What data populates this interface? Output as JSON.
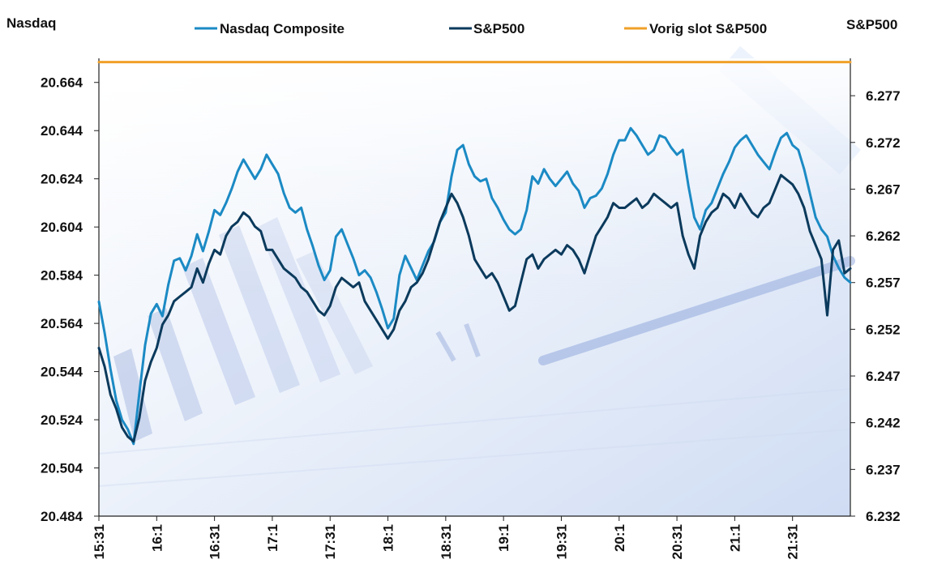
{
  "chart_data": {
    "type": "line",
    "title": "",
    "ylabel_left": "Nasdaq",
    "ylabel_right": "S&P500",
    "ylim_left": [
      20484,
      20674
    ],
    "ylim_right": [
      6232,
      6281
    ],
    "yticks_left": [
      "20.484",
      "20.504",
      "20.524",
      "20.544",
      "20.564",
      "20.584",
      "20.604",
      "20.624",
      "20.644",
      "20.664"
    ],
    "yticks_right": [
      "6.232",
      "6.237",
      "6.242",
      "6.247",
      "6.252",
      "6.257",
      "6.262",
      "6.267",
      "6.272",
      "6.277"
    ],
    "x_tick_labels": [
      "15:31",
      "16:1",
      "16:31",
      "17:1",
      "17:31",
      "18:1",
      "18:31",
      "19:1",
      "19:31",
      "20:1",
      "20:31",
      "21:1",
      "21:31"
    ],
    "x_minutes_range": [
      0,
      390
    ],
    "grid": false,
    "legend_position": "top",
    "series": [
      {
        "name": "Nasdaq Composite",
        "axis": "left",
        "color": "#1b8ac4",
        "points": [
          [
            0,
            20573
          ],
          [
            3,
            20560
          ],
          [
            6,
            20545
          ],
          [
            9,
            20532
          ],
          [
            12,
            20524
          ],
          [
            15,
            20520
          ],
          [
            18,
            20514
          ],
          [
            21,
            20535
          ],
          [
            24,
            20555
          ],
          [
            27,
            20568
          ],
          [
            30,
            20572
          ],
          [
            33,
            20567
          ],
          [
            36,
            20580
          ],
          [
            39,
            20590
          ],
          [
            42,
            20591
          ],
          [
            45,
            20586
          ],
          [
            48,
            20592
          ],
          [
            51,
            20601
          ],
          [
            54,
            20594
          ],
          [
            57,
            20602
          ],
          [
            60,
            20611
          ],
          [
            63,
            20609
          ],
          [
            66,
            20614
          ],
          [
            69,
            20620
          ],
          [
            72,
            20627
          ],
          [
            75,
            20632
          ],
          [
            78,
            20628
          ],
          [
            81,
            20624
          ],
          [
            84,
            20628
          ],
          [
            87,
            20634
          ],
          [
            90,
            20630
          ],
          [
            93,
            20626
          ],
          [
            96,
            20618
          ],
          [
            99,
            20612
          ],
          [
            102,
            20610
          ],
          [
            105,
            20612
          ],
          [
            108,
            20603
          ],
          [
            111,
            20596
          ],
          [
            114,
            20588
          ],
          [
            117,
            20582
          ],
          [
            120,
            20586
          ],
          [
            123,
            20600
          ],
          [
            126,
            20603
          ],
          [
            129,
            20597
          ],
          [
            132,
            20591
          ],
          [
            135,
            20584
          ],
          [
            138,
            20586
          ],
          [
            141,
            20583
          ],
          [
            144,
            20577
          ],
          [
            147,
            20570
          ],
          [
            150,
            20562
          ],
          [
            153,
            20566
          ],
          [
            156,
            20584
          ],
          [
            159,
            20592
          ],
          [
            162,
            20587
          ],
          [
            165,
            20582
          ],
          [
            168,
            20588
          ],
          [
            171,
            20594
          ],
          [
            174,
            20598
          ],
          [
            177,
            20606
          ],
          [
            180,
            20610
          ],
          [
            183,
            20625
          ],
          [
            186,
            20636
          ],
          [
            189,
            20638
          ],
          [
            192,
            20630
          ],
          [
            195,
            20625
          ],
          [
            198,
            20623
          ],
          [
            201,
            20624
          ],
          [
            204,
            20616
          ],
          [
            207,
            20612
          ],
          [
            210,
            20607
          ],
          [
            213,
            20603
          ],
          [
            216,
            20601
          ],
          [
            219,
            20603
          ],
          [
            222,
            20611
          ],
          [
            225,
            20625
          ],
          [
            228,
            20622
          ],
          [
            231,
            20628
          ],
          [
            234,
            20624
          ],
          [
            237,
            20621
          ],
          [
            240,
            20624
          ],
          [
            243,
            20627
          ],
          [
            246,
            20622
          ],
          [
            249,
            20619
          ],
          [
            252,
            20612
          ],
          [
            255,
            20616
          ],
          [
            258,
            20617
          ],
          [
            261,
            20620
          ],
          [
            264,
            20626
          ],
          [
            267,
            20634
          ],
          [
            270,
            20640
          ],
          [
            273,
            20640
          ],
          [
            276,
            20645
          ],
          [
            279,
            20642
          ],
          [
            282,
            20638
          ],
          [
            285,
            20634
          ],
          [
            288,
            20636
          ],
          [
            291,
            20642
          ],
          [
            294,
            20641
          ],
          [
            297,
            20637
          ],
          [
            300,
            20634
          ],
          [
            303,
            20636
          ],
          [
            306,
            20621
          ],
          [
            309,
            20608
          ],
          [
            312,
            20603
          ],
          [
            315,
            20611
          ],
          [
            318,
            20614
          ],
          [
            321,
            20620
          ],
          [
            324,
            20626
          ],
          [
            327,
            20631
          ],
          [
            330,
            20637
          ],
          [
            333,
            20640
          ],
          [
            336,
            20642
          ],
          [
            339,
            20638
          ],
          [
            342,
            20634
          ],
          [
            345,
            20631
          ],
          [
            348,
            20628
          ],
          [
            351,
            20635
          ],
          [
            354,
            20641
          ],
          [
            357,
            20643
          ],
          [
            360,
            20638
          ],
          [
            363,
            20636
          ],
          [
            366,
            20628
          ],
          [
            369,
            20618
          ],
          [
            372,
            20608
          ],
          [
            375,
            20603
          ],
          [
            378,
            20600
          ],
          [
            381,
            20592
          ],
          [
            384,
            20587
          ],
          [
            387,
            20583
          ],
          [
            390,
            20581
          ]
        ]
      },
      {
        "name": "S&P500",
        "axis": "right",
        "color": "#0b3a5c",
        "points": [
          [
            0,
            6250.0
          ],
          [
            3,
            6248.0
          ],
          [
            6,
            6245.0
          ],
          [
            9,
            6243.5
          ],
          [
            12,
            6241.5
          ],
          [
            15,
            6240.5
          ],
          [
            18,
            6240.0
          ],
          [
            21,
            6242.5
          ],
          [
            24,
            6246.5
          ],
          [
            27,
            6248.5
          ],
          [
            30,
            6250.0
          ],
          [
            33,
            6252.5
          ],
          [
            36,
            6253.5
          ],
          [
            39,
            6255.0
          ],
          [
            42,
            6255.5
          ],
          [
            45,
            6256.0
          ],
          [
            48,
            6256.5
          ],
          [
            51,
            6258.5
          ],
          [
            54,
            6257.0
          ],
          [
            57,
            6259.0
          ],
          [
            60,
            6260.5
          ],
          [
            63,
            6260.0
          ],
          [
            66,
            6262.0
          ],
          [
            69,
            6263.0
          ],
          [
            72,
            6263.5
          ],
          [
            75,
            6264.5
          ],
          [
            78,
            6264.0
          ],
          [
            81,
            6263.0
          ],
          [
            84,
            6262.5
          ],
          [
            87,
            6260.5
          ],
          [
            90,
            6260.5
          ],
          [
            93,
            6259.5
          ],
          [
            96,
            6258.5
          ],
          [
            99,
            6258.0
          ],
          [
            102,
            6257.5
          ],
          [
            105,
            6256.5
          ],
          [
            108,
            6256.0
          ],
          [
            111,
            6255.0
          ],
          [
            114,
            6254.0
          ],
          [
            117,
            6253.5
          ],
          [
            120,
            6254.5
          ],
          [
            123,
            6256.5
          ],
          [
            126,
            6257.5
          ],
          [
            129,
            6257.0
          ],
          [
            132,
            6256.5
          ],
          [
            135,
            6257.0
          ],
          [
            138,
            6255.0
          ],
          [
            141,
            6254.0
          ],
          [
            144,
            6253.0
          ],
          [
            147,
            6252.0
          ],
          [
            150,
            6251.0
          ],
          [
            153,
            6252.0
          ],
          [
            156,
            6254.0
          ],
          [
            159,
            6255.0
          ],
          [
            162,
            6256.5
          ],
          [
            165,
            6257.0
          ],
          [
            168,
            6258.0
          ],
          [
            171,
            6259.5
          ],
          [
            174,
            6261.5
          ],
          [
            177,
            6263.5
          ],
          [
            180,
            6265.0
          ],
          [
            183,
            6266.5
          ],
          [
            186,
            6265.5
          ],
          [
            189,
            6264.0
          ],
          [
            192,
            6262.0
          ],
          [
            195,
            6259.5
          ],
          [
            198,
            6258.5
          ],
          [
            201,
            6257.5
          ],
          [
            204,
            6258.0
          ],
          [
            207,
            6257.0
          ],
          [
            210,
            6255.5
          ],
          [
            213,
            6254.0
          ],
          [
            216,
            6254.5
          ],
          [
            219,
            6257.0
          ],
          [
            222,
            6259.5
          ],
          [
            225,
            6260.0
          ],
          [
            228,
            6258.5
          ],
          [
            231,
            6259.5
          ],
          [
            234,
            6260.0
          ],
          [
            237,
            6260.5
          ],
          [
            240,
            6260.0
          ],
          [
            243,
            6261.0
          ],
          [
            246,
            6260.5
          ],
          [
            249,
            6259.5
          ],
          [
            252,
            6258.0
          ],
          [
            255,
            6260.0
          ],
          [
            258,
            6262.0
          ],
          [
            261,
            6263.0
          ],
          [
            264,
            6264.0
          ],
          [
            267,
            6265.5
          ],
          [
            270,
            6265.0
          ],
          [
            273,
            6265.0
          ],
          [
            276,
            6265.5
          ],
          [
            279,
            6266.0
          ],
          [
            282,
            6265.0
          ],
          [
            285,
            6265.5
          ],
          [
            288,
            6266.5
          ],
          [
            291,
            6266.0
          ],
          [
            294,
            6265.5
          ],
          [
            297,
            6265.0
          ],
          [
            300,
            6265.5
          ],
          [
            303,
            6262.0
          ],
          [
            306,
            6260.0
          ],
          [
            309,
            6258.5
          ],
          [
            312,
            6262.0
          ],
          [
            315,
            6263.5
          ],
          [
            318,
            6264.5
          ],
          [
            321,
            6265.0
          ],
          [
            324,
            6266.5
          ],
          [
            327,
            6266.0
          ],
          [
            330,
            6265.0
          ],
          [
            333,
            6266.5
          ],
          [
            336,
            6265.5
          ],
          [
            339,
            6264.5
          ],
          [
            342,
            6264.0
          ],
          [
            345,
            6265.0
          ],
          [
            348,
            6265.5
          ],
          [
            351,
            6267.0
          ],
          [
            354,
            6268.5
          ],
          [
            357,
            6268.0
          ],
          [
            360,
            6267.5
          ],
          [
            363,
            6266.5
          ],
          [
            366,
            6265.0
          ],
          [
            369,
            6262.5
          ],
          [
            372,
            6261.0
          ],
          [
            375,
            6259.5
          ],
          [
            378,
            6253.5
          ],
          [
            381,
            6260.5
          ],
          [
            384,
            6261.5
          ],
          [
            387,
            6258.0
          ],
          [
            390,
            6258.5
          ]
        ]
      },
      {
        "name": "Vorig slot S&P500",
        "axis": "right",
        "color": "#f0a028",
        "points": [
          [
            0,
            6280.6
          ],
          [
            390,
            6280.6
          ]
        ]
      }
    ]
  }
}
